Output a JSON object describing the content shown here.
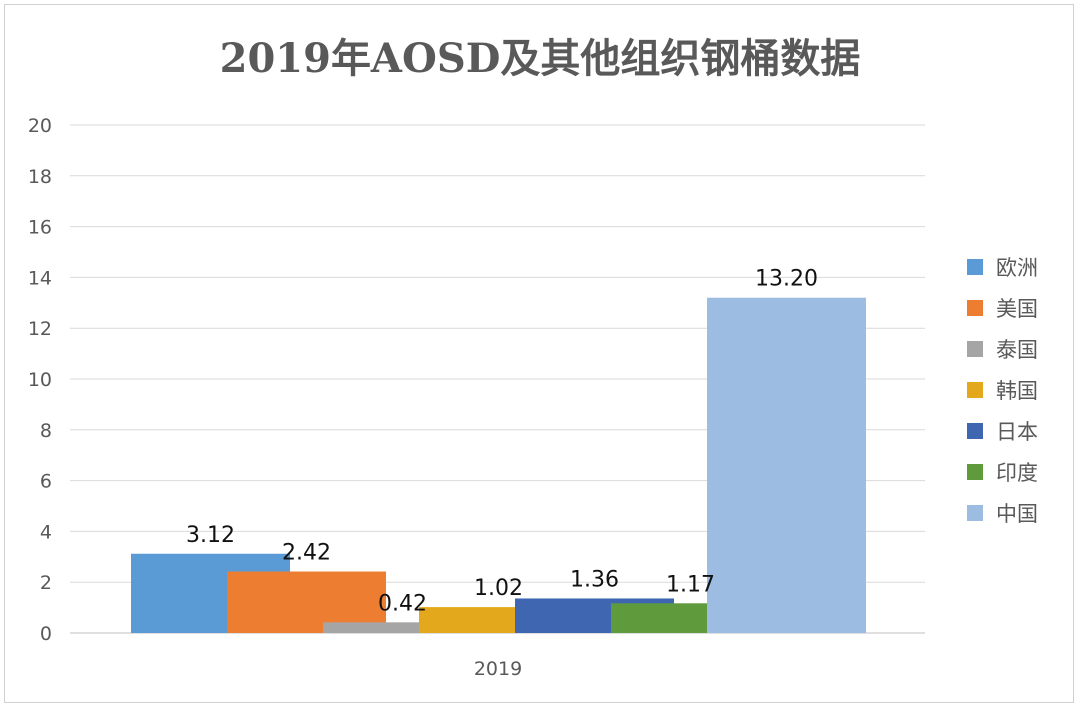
{
  "chart_data": {
    "type": "bar",
    "title": "2019年AOSD及其他组织钢桶数据",
    "categories": [
      "2019"
    ],
    "series": [
      {
        "name": "欧洲",
        "values": [
          3.12
        ],
        "color": "#5B9BD5"
      },
      {
        "name": "美国",
        "values": [
          2.42
        ],
        "color": "#ED7D31"
      },
      {
        "name": "泰国",
        "values": [
          0.42
        ],
        "color": "#A5A5A5"
      },
      {
        "name": "韩国",
        "values": [
          1.02
        ],
        "color": "#E3A81B"
      },
      {
        "name": "日本",
        "values": [
          1.36
        ],
        "color": "#3F66B0"
      },
      {
        "name": "印度",
        "values": [
          1.17
        ],
        "color": "#5F9A3D"
      },
      {
        "name": "中国",
        "values": [
          13.2
        ],
        "color": "#9DBCE2"
      }
    ],
    "data_labels": [
      "3.12",
      "2.42",
      "0.42",
      "1.02",
      "1.36",
      "1.17",
      "13.20"
    ],
    "ylim": [
      0,
      20
    ],
    "yticks": [
      0,
      2,
      4,
      6,
      8,
      10,
      12,
      14,
      16,
      18,
      20
    ],
    "grid": true,
    "legend": "right",
    "xlabel": "",
    "ylabel": ""
  }
}
